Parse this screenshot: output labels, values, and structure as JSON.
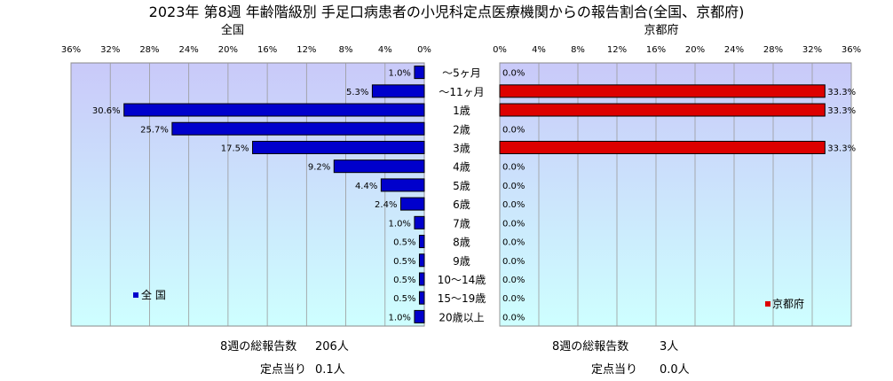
{
  "title": "2023年 第8週  年齢階級別 手足口病患者の小児科定点医療機関からの報告割合(全国、京都府)",
  "chart_data": [
    {
      "type": "bar",
      "orientation": "horizontal",
      "direction": "right-to-left",
      "title": "全国",
      "categories": [
        "～5ヶ月",
        "～11ヶ月",
        "1歳",
        "2歳",
        "3歳",
        "4歳",
        "5歳",
        "6歳",
        "7歳",
        "8歳",
        "9歳",
        "10～14歳",
        "15～19歳",
        "20歳以上"
      ],
      "series": [
        {
          "name": "全 国",
          "color": "#0000cc",
          "values": [
            1.0,
            5.3,
            30.6,
            25.7,
            17.5,
            9.2,
            4.4,
            2.4,
            1.0,
            0.5,
            0.5,
            0.5,
            0.5,
            1.0
          ],
          "labels": [
            "1.0%",
            "5.3%",
            "30.6%",
            "25.7%",
            "17.5%",
            "9.2%",
            "4.4%",
            "2.4%",
            "1.0%",
            "0.5%",
            "0.5%",
            "0.5%",
            "0.5%",
            "1.0%"
          ]
        }
      ],
      "xlim": [
        0,
        36
      ],
      "ticks": [
        "36%",
        "32%",
        "28%",
        "24%",
        "20%",
        "16%",
        "12%",
        "8%",
        "4%",
        "0%"
      ],
      "grid": true,
      "legend": "bottom-left",
      "footer": {
        "label1": "8週の総報告数",
        "value1": "206人",
        "label2": "定点当り",
        "value2": "0.1人"
      }
    },
    {
      "type": "bar",
      "orientation": "horizontal",
      "direction": "left-to-right",
      "title": "京都府",
      "categories": [
        "～5ヶ月",
        "～11ヶ月",
        "1歳",
        "2歳",
        "3歳",
        "4歳",
        "5歳",
        "6歳",
        "7歳",
        "8歳",
        "9歳",
        "10～14歳",
        "15～19歳",
        "20歳以上"
      ],
      "series": [
        {
          "name": "京都府",
          "color": "#dd0000",
          "values": [
            0.0,
            33.3,
            33.3,
            0.0,
            33.3,
            0.0,
            0.0,
            0.0,
            0.0,
            0.0,
            0.0,
            0.0,
            0.0,
            0.0
          ],
          "labels": [
            "0.0%",
            "33.3%",
            "33.3%",
            "0.0%",
            "33.3%",
            "0.0%",
            "0.0%",
            "0.0%",
            "0.0%",
            "0.0%",
            "0.0%",
            "0.0%",
            "0.0%",
            "0.0%"
          ]
        }
      ],
      "xlim": [
        0,
        36
      ],
      "ticks": [
        "0%",
        "4%",
        "8%",
        "12%",
        "16%",
        "20%",
        "24%",
        "28%",
        "32%",
        "36%"
      ],
      "grid": true,
      "legend": "bottom-right",
      "footer": {
        "label1": "8週の総報告数",
        "value1": "3人",
        "label2": "定点当り",
        "value2": "0.0人"
      }
    }
  ]
}
